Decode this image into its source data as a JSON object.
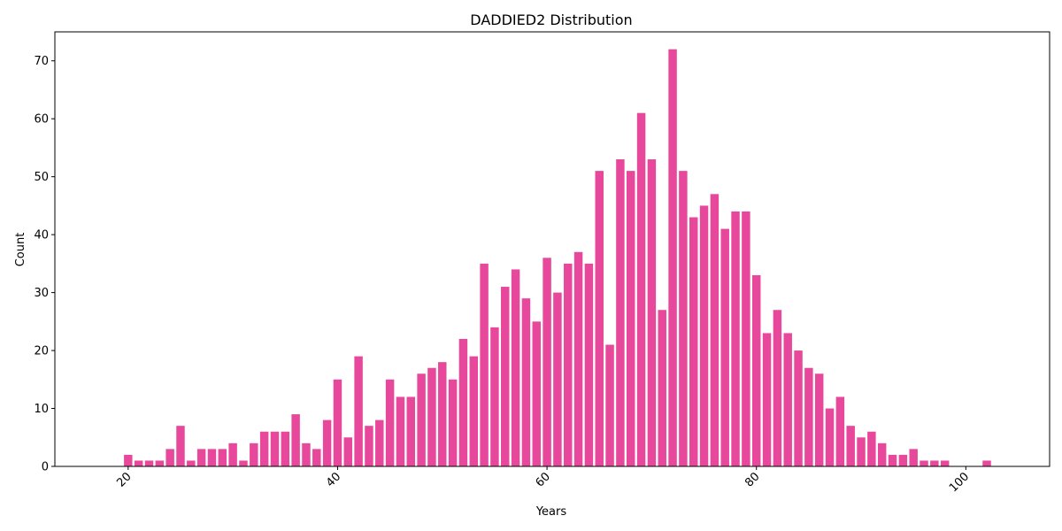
{
  "chart_data": {
    "type": "bar",
    "title": "DADDIED2 Distribution",
    "xlabel": "Years",
    "ylabel": "Count",
    "bar_color": "#e8489b",
    "xlim": [
      13,
      108
    ],
    "ylim": [
      0,
      75
    ],
    "xticks": [
      20,
      40,
      60,
      80,
      100
    ],
    "yticks": [
      0,
      10,
      20,
      30,
      40,
      50,
      60,
      70
    ],
    "grid": false,
    "x": [
      20,
      21,
      22,
      23,
      24,
      25,
      26,
      27,
      28,
      29,
      30,
      31,
      32,
      33,
      34,
      35,
      36,
      37,
      38,
      39,
      40,
      41,
      42,
      43,
      44,
      45,
      46,
      47,
      48,
      49,
      50,
      51,
      52,
      53,
      54,
      55,
      56,
      57,
      58,
      59,
      60,
      61,
      62,
      63,
      64,
      65,
      66,
      67,
      68,
      69,
      70,
      71,
      72,
      73,
      74,
      75,
      76,
      77,
      78,
      79,
      80,
      81,
      82,
      83,
      84,
      85,
      86,
      87,
      88,
      89,
      90,
      91,
      92,
      93,
      94,
      95,
      96,
      97,
      98,
      102
    ],
    "values": [
      2,
      1,
      1,
      1,
      3,
      7,
      1,
      3,
      3,
      3,
      4,
      1,
      4,
      6,
      6,
      6,
      9,
      4,
      3,
      8,
      15,
      5,
      19,
      7,
      8,
      15,
      12,
      12,
      16,
      17,
      18,
      15,
      22,
      19,
      35,
      24,
      31,
      34,
      29,
      25,
      36,
      30,
      35,
      37,
      35,
      51,
      21,
      53,
      51,
      61,
      53,
      27,
      72,
      51,
      43,
      45,
      47,
      41,
      44,
      44,
      33,
      23,
      27,
      23,
      20,
      17,
      16,
      10,
      12,
      7,
      5,
      6,
      4,
      2,
      2,
      3,
      1,
      1,
      1,
      1
    ]
  }
}
